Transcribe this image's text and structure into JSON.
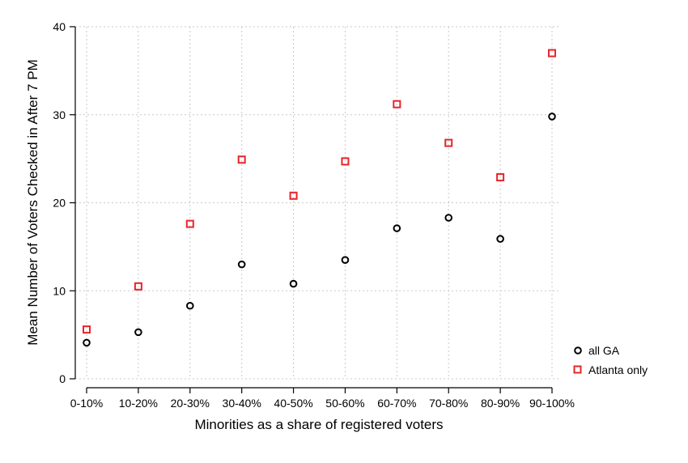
{
  "chart_data": {
    "type": "scatter",
    "title": "",
    "xlabel": "Minorities as a share of registered voters",
    "ylabel": "Mean Number of Voters Checked in After 7 PM",
    "categories": [
      "0-10%",
      "10-20%",
      "20-30%",
      "30-40%",
      "40-50%",
      "50-60%",
      "60-70%",
      "70-80%",
      "80-90%",
      "90-100%"
    ],
    "ylim": [
      0,
      40
    ],
    "yticks": [
      0,
      10,
      20,
      30,
      40
    ],
    "grid": true,
    "legend_position": "right",
    "series": [
      {
        "name": "all GA",
        "marker": "circle",
        "color": "#000000",
        "values": [
          4.1,
          5.3,
          8.3,
          13.0,
          10.8,
          13.5,
          17.1,
          18.3,
          15.9,
          29.8
        ]
      },
      {
        "name": "Atlanta only",
        "marker": "square",
        "color": "#e8252b",
        "values": [
          5.6,
          10.5,
          17.6,
          24.9,
          20.8,
          24.7,
          31.2,
          26.8,
          22.9,
          37.0
        ]
      }
    ]
  }
}
